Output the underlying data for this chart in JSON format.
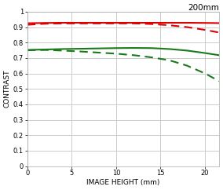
{
  "title": "200mm",
  "xlabel": "IMAGE HEIGHT (mm)",
  "ylabel": "CONTRAST",
  "xlim": [
    0,
    21.6
  ],
  "ylim": [
    0,
    1.0
  ],
  "xticks": [
    0,
    5,
    10,
    15,
    20
  ],
  "yticks": [
    0,
    0.1,
    0.2,
    0.3,
    0.4,
    0.5,
    0.6,
    0.7,
    0.8,
    0.9,
    1
  ],
  "red_solid_x": [
    0,
    2,
    4,
    6,
    8,
    10,
    12,
    14,
    16,
    18,
    20,
    21.6
  ],
  "red_solid_y": [
    0.925,
    0.927,
    0.928,
    0.928,
    0.928,
    0.928,
    0.928,
    0.928,
    0.928,
    0.928,
    0.927,
    0.926
  ],
  "red_dashed_x": [
    0,
    2,
    4,
    6,
    8,
    10,
    12,
    14,
    16,
    18,
    20,
    21.6
  ],
  "red_dashed_y": [
    0.915,
    0.922,
    0.924,
    0.924,
    0.924,
    0.924,
    0.924,
    0.92,
    0.912,
    0.9,
    0.882,
    0.865
  ],
  "green_solid_x": [
    0,
    2,
    4,
    6,
    8,
    10,
    12,
    14,
    16,
    18,
    20,
    21.6
  ],
  "green_solid_y": [
    0.752,
    0.755,
    0.758,
    0.76,
    0.762,
    0.764,
    0.765,
    0.764,
    0.758,
    0.748,
    0.732,
    0.718
  ],
  "green_dashed_x": [
    0,
    2,
    4,
    6,
    8,
    10,
    12,
    14,
    16,
    18,
    20,
    21.6
  ],
  "green_dashed_y": [
    0.75,
    0.752,
    0.748,
    0.742,
    0.735,
    0.728,
    0.718,
    0.704,
    0.685,
    0.65,
    0.6,
    0.55
  ],
  "red_color": "#dd0000",
  "green_color": "#1a7a1a",
  "bg_color": "#ffffff",
  "grid_color": "#cccccc",
  "linewidth": 1.5,
  "title_fontsize": 7.5,
  "axis_label_fontsize": 6.5,
  "tick_fontsize": 6
}
